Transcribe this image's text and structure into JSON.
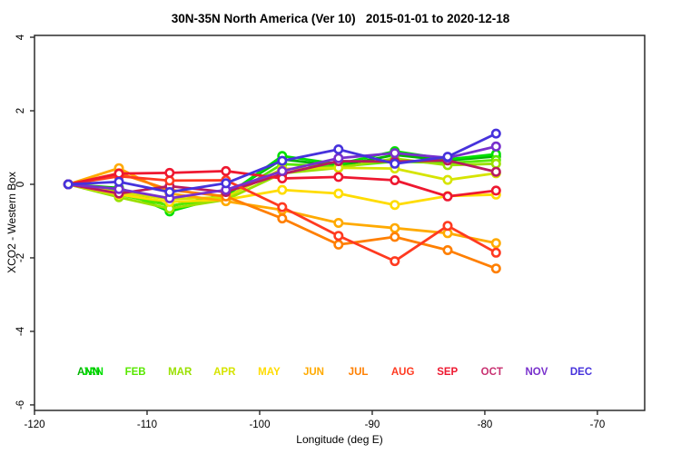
{
  "title": "30N-35N North America (Ver 10)   2015-01-01 to 2020-12-18",
  "axes": {
    "x": {
      "label": "Longitude (deg E)",
      "tick_labels": [
        "-120",
        "-110",
        "-100",
        "-90",
        "-80",
        "-70"
      ],
      "tick_values": [
        -120,
        -110,
        -100,
        -90,
        -80,
        -70
      ]
    },
    "y": {
      "label": "XCO2 - Western Box",
      "tick_labels": [
        "4",
        "2",
        "0",
        "-2",
        "-4",
        "-6"
      ],
      "tick_values": [
        4,
        2,
        0,
        -2,
        -4,
        -6
      ]
    }
  },
  "chart_data": {
    "type": "line",
    "title": "30N-35N North America (Ver 10)   2015-01-01 to 2020-12-18",
    "xlabel": "Longitude (deg E)",
    "ylabel": "XCO2 - Western Box",
    "xlim": [
      -120,
      -65.8
    ],
    "ylim": [
      -6.15,
      4.05
    ],
    "grid": false,
    "marker": "open-circle",
    "x": [
      -117,
      -112.5,
      -108,
      -103,
      -98,
      -93,
      -88,
      -83.3,
      -79
    ],
    "series": [
      {
        "name": "ANN",
        "color": "#00b400",
        "values": [
          0.0,
          -0.1,
          -0.6,
          -0.28,
          0.68,
          0.5,
          0.8,
          0.65,
          0.76
        ]
      },
      {
        "name": "JAN",
        "color": "#00e000",
        "values": [
          0.0,
          -0.15,
          -0.74,
          -0.32,
          0.77,
          0.55,
          0.9,
          0.68,
          0.82
        ]
      },
      {
        "name": "FEB",
        "color": "#58e800",
        "values": [
          0.0,
          -0.28,
          -0.58,
          -0.38,
          0.55,
          0.48,
          0.62,
          0.58,
          0.66
        ]
      },
      {
        "name": "MAR",
        "color": "#9ae000",
        "values": [
          0.0,
          -0.35,
          -0.66,
          -0.42,
          0.3,
          0.45,
          0.7,
          0.52,
          0.56
        ]
      },
      {
        "name": "APR",
        "color": "#d6e400",
        "values": [
          0.0,
          -0.22,
          -0.4,
          -0.35,
          0.42,
          0.45,
          0.43,
          0.12,
          0.3
        ]
      },
      {
        "name": "MAY",
        "color": "#ffdc00",
        "values": [
          0.0,
          -0.28,
          -0.48,
          -0.42,
          -0.15,
          -0.25,
          -0.56,
          -0.32,
          -0.28
        ]
      },
      {
        "name": "JUN",
        "color": "#ffaa00",
        "values": [
          0.0,
          0.44,
          -0.25,
          -0.46,
          -0.7,
          -1.05,
          -1.19,
          -1.33,
          -1.6
        ]
      },
      {
        "name": "JUL",
        "color": "#ff7f00",
        "values": [
          0.0,
          0.3,
          -0.15,
          -0.33,
          -0.93,
          -1.64,
          -1.43,
          -1.79,
          -2.29
        ]
      },
      {
        "name": "AUG",
        "color": "#ff3a20",
        "values": [
          0.0,
          0.22,
          0.1,
          0.11,
          -0.62,
          -1.4,
          -2.09,
          -1.13,
          -1.86
        ]
      },
      {
        "name": "SEP",
        "color": "#ee1830",
        "values": [
          0.0,
          0.29,
          0.31,
          0.36,
          0.16,
          0.2,
          0.11,
          -0.33,
          -0.17
        ]
      },
      {
        "name": "OCT",
        "color": "#b81a60",
        "values": [
          0.0,
          -0.25,
          -0.05,
          -0.21,
          0.28,
          0.63,
          0.62,
          0.65,
          0.34
        ]
      },
      {
        "name": "NOV",
        "color": "#7830cc",
        "values": [
          0.0,
          -0.13,
          -0.38,
          -0.15,
          0.36,
          0.71,
          0.85,
          0.72,
          1.03
        ]
      },
      {
        "name": "DEC",
        "color": "#4632dc",
        "values": [
          0.0,
          0.07,
          -0.21,
          0.03,
          0.64,
          0.95,
          0.56,
          0.75,
          1.38
        ]
      }
    ],
    "legend": {
      "position": "bottom-inside",
      "note": "ANN label overprinted on JAN label",
      "entries": [
        {
          "label": "ANN",
          "color": "#00b400"
        },
        {
          "label": "JAN",
          "color": "#00e000"
        },
        {
          "label": "FEB",
          "color": "#58e800"
        },
        {
          "label": "MAR",
          "color": "#9ae000"
        },
        {
          "label": "APR",
          "color": "#d6e400"
        },
        {
          "label": "MAY",
          "color": "#ffdc00"
        },
        {
          "label": "JUN",
          "color": "#ffaa00"
        },
        {
          "label": "JUL",
          "color": "#ff7f00"
        },
        {
          "label": "AUG",
          "color": "#ff3a20"
        },
        {
          "label": "SEP",
          "color": "#ee1830"
        },
        {
          "label": "OCT",
          "color": "#c83070"
        },
        {
          "label": "NOV",
          "color": "#7830cc"
        },
        {
          "label": "DEC",
          "color": "#4632dc"
        }
      ]
    }
  }
}
